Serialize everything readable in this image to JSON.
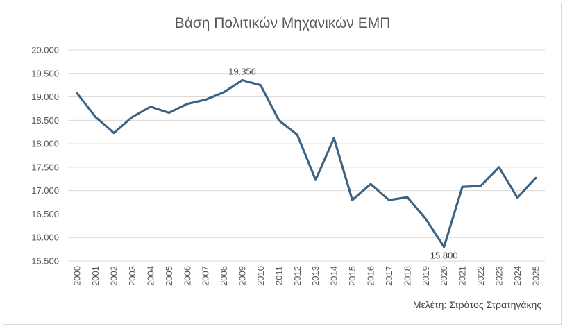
{
  "chart_data": {
    "type": "line",
    "title": "Βάση Πολιτικών Μηχανικών ΕΜΠ",
    "xlabel": "",
    "ylabel": "",
    "ylim": [
      15500,
      20000
    ],
    "yticks": [
      "15.500",
      "16.000",
      "16.500",
      "17.000",
      "17.500",
      "18.000",
      "18.500",
      "19.000",
      "19.500",
      "20.000"
    ],
    "ytick_values": [
      15500,
      16000,
      16500,
      17000,
      17500,
      18000,
      18500,
      19000,
      19500,
      20000
    ],
    "categories": [
      "2000",
      "2001",
      "2002",
      "2003",
      "2004",
      "2005",
      "2006",
      "2007",
      "2008",
      "2009",
      "2010",
      "2011",
      "2012",
      "2013",
      "2014",
      "2015",
      "2016",
      "2017",
      "2018",
      "2019",
      "2020",
      "2021",
      "2022",
      "2023",
      "2024",
      "2025"
    ],
    "series": [
      {
        "name": "Βάση",
        "color": "#3d6384",
        "values": [
          19074,
          18570,
          18230,
          18570,
          18790,
          18660,
          18850,
          18940,
          19100,
          19356,
          19250,
          18500,
          18190,
          17230,
          18120,
          16800,
          17140,
          16800,
          16860,
          16400,
          15800,
          17080,
          17100,
          17500,
          16850,
          17270
        ]
      }
    ],
    "data_labels": [
      {
        "category": "2009",
        "text": "19.356",
        "position": "above"
      },
      {
        "category": "2020",
        "text": "15.800",
        "position": "below"
      }
    ],
    "grid": true,
    "legend": "none",
    "annotation": "Μελέτη: Στράτος Στρατηγάκης"
  }
}
